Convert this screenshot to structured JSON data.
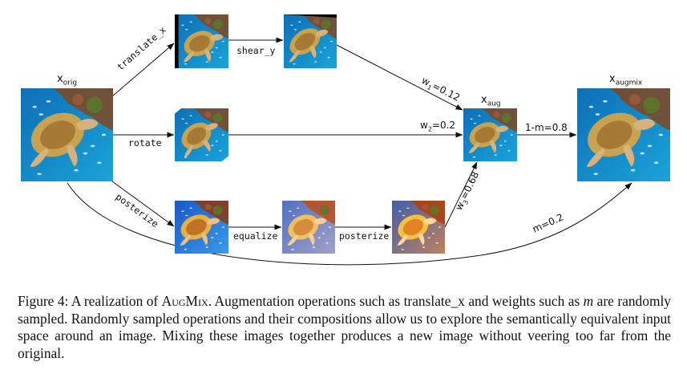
{
  "nodes": {
    "x_orig": {
      "base": "x",
      "sub": "orig"
    },
    "x_aug": {
      "base": "x",
      "sub": "aug"
    },
    "x_augmix": {
      "base": "x",
      "sub": "augmix"
    }
  },
  "ops": {
    "translate_x": "translate_x",
    "shear_y": "shear_y",
    "rotate": "rotate",
    "posterize_1": "posterize",
    "equalize": "equalize",
    "posterize_2": "posterize"
  },
  "weights": {
    "w1": {
      "base": "w",
      "sub": "1",
      "value": "=0.12"
    },
    "w2": {
      "base": "w",
      "sub": "2",
      "value": "=0.2"
    },
    "w3": {
      "base": "w",
      "sub": "3",
      "value": "=0.68"
    },
    "one_minus_m": "1-m=0.8",
    "m": "m=0.2"
  },
  "caption": {
    "prefix": "Figure 4: A realization of ",
    "method": "AugMix",
    "rest1": ". Augmentation operations such as translate_x and weights such as ",
    "m_symbol": "m",
    "rest2": " are randomly sampled. Randomly sampled operations and their compositions allow us to explore the semantically equivalent input space around an image. Mixing these images together produces a new image without veering too far from the original."
  },
  "image_description": "underwater photo of a sea turtle swimming over coral reef with fish"
}
